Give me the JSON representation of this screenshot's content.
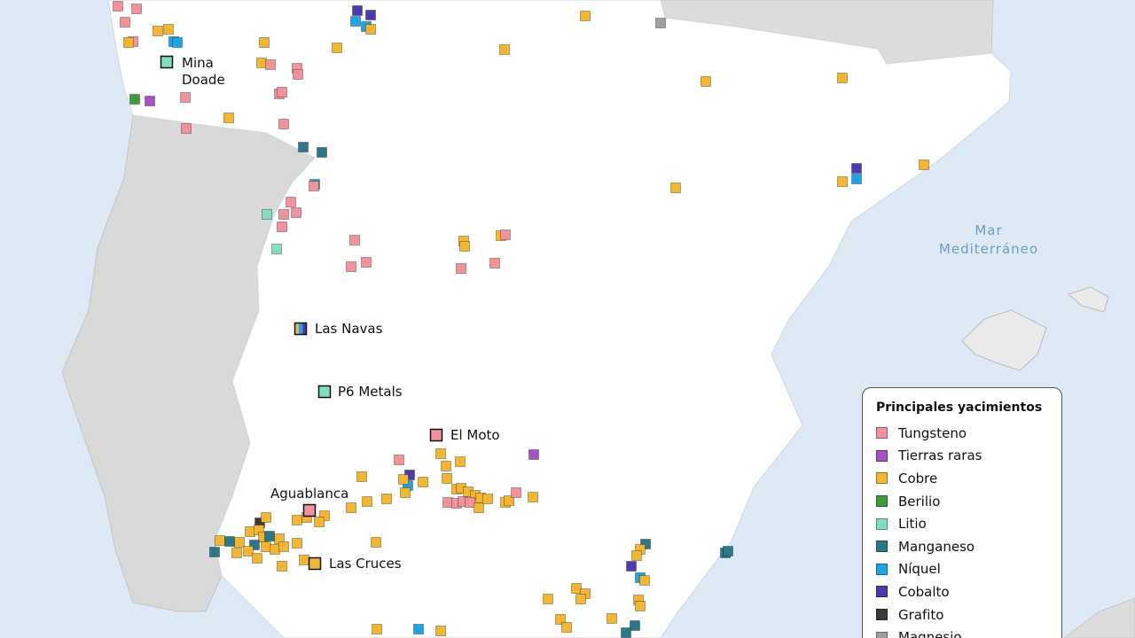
{
  "labels": {
    "sea": [
      "Mar",
      "Mediterráneo"
    ],
    "sites": [
      "Mina Doade",
      "Las Navas",
      "P6 Metals",
      "El Moto",
      "Aguablanca",
      "Las Cruces"
    ]
  },
  "legend": {
    "title": "Principales yacimientos",
    "items": [
      {
        "name": "Tungsteno",
        "color": "#f2939c"
      },
      {
        "name": "Tierras raras",
        "color": "#a651c4"
      },
      {
        "name": "Cobre",
        "color": "#f2b632"
      },
      {
        "name": "Berilio",
        "color": "#3e9a3c"
      },
      {
        "name": "Litio",
        "color": "#82dcc2"
      },
      {
        "name": "Manganeso",
        "color": "#2a7888"
      },
      {
        "name": "Níquel",
        "color": "#1ea3e3"
      },
      {
        "name": "Cobalto",
        "color": "#4c3bb0"
      },
      {
        "name": "Grafito",
        "color": "#3a3a3a"
      },
      {
        "name": "Magnesio",
        "color": "#a0a0a0"
      }
    ]
  }
}
